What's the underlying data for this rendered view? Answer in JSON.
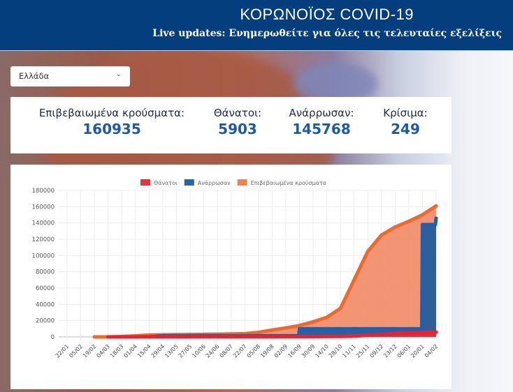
{
  "header": {
    "title": "ΚΟΡΩΝΟΪΟΣ COVID-19",
    "subtitle": "Live updates: Ενημερωθείτε για όλες τις τελευταίες εξελίξεις"
  },
  "country_select": {
    "value": "Ελλάδα",
    "icon": "chevron-down-icon"
  },
  "stats": [
    {
      "label": "Επιβεβαιωμένα κρούσματα:",
      "value": "160935"
    },
    {
      "label": "Θάνατοι:",
      "value": "5903"
    },
    {
      "label": "Ανάρρωσαν:",
      "value": "145768"
    },
    {
      "label": "Κρίσιμα:",
      "value": "249"
    }
  ],
  "chart_data": {
    "type": "area",
    "legend_position": "top",
    "grid": true,
    "ylim": [
      0,
      180000
    ],
    "yticks": [
      "0",
      "20000",
      "40000",
      "60000",
      "80000",
      "100000",
      "120000",
      "140000",
      "160000",
      "180000"
    ],
    "categories": [
      "22/01",
      "05/02",
      "19/02",
      "04/03",
      "18/03",
      "01/04",
      "15/04",
      "29/04",
      "13/05",
      "27/05",
      "10/06",
      "24/06",
      "08/07",
      "22/07",
      "05/08",
      "19/08",
      "02/09",
      "16/09",
      "30/09",
      "14/10",
      "28/10",
      "11/11",
      "25/11",
      "09/12",
      "23/12",
      "06/01",
      "20/01",
      "04/02"
    ],
    "series": [
      {
        "name": "Θάνατοι",
        "color": "#e8323c",
        "values": [
          0,
          0,
          0,
          0,
          5,
          50,
          100,
          130,
          150,
          170,
          180,
          190,
          195,
          205,
          215,
          240,
          270,
          320,
          390,
          520,
          620,
          1000,
          2000,
          3000,
          4400,
          5000,
          5400,
          5903
        ]
      },
      {
        "name": "Ανάρρωσαν",
        "color": "#2a64a8",
        "values": [
          0,
          0,
          0,
          0,
          0,
          0,
          0,
          1374,
          1374,
          1374,
          1374,
          1374,
          1374,
          1374,
          1374,
          1374,
          1374,
          9989,
          9989,
          9989,
          9989,
          9989,
          9989,
          9989,
          9989,
          9989,
          138000,
          145768
        ]
      },
      {
        "name": "Επιβεβαιωμένα κρούσματα",
        "color": "#f0824f",
        "values": [
          0,
          0,
          0,
          10,
          400,
          1300,
          2200,
          2600,
          2800,
          2900,
          3100,
          3300,
          3600,
          4000,
          5600,
          8400,
          11000,
          14000,
          18500,
          24000,
          35000,
          70000,
          105000,
          125000,
          135000,
          142000,
          150000,
          160935
        ]
      }
    ]
  }
}
